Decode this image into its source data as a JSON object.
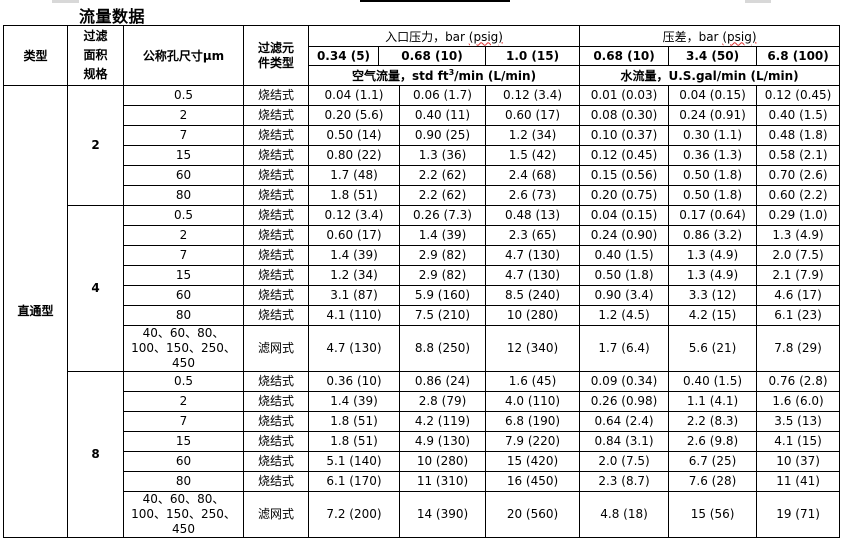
{
  "title": "流量数据",
  "header": {
    "type": "类型",
    "filter_area": "过滤面积规格",
    "pore_size": "公称孔尺寸μm",
    "element_type": "过滤元件类型",
    "inlet_pressure": {
      "label": "入口压力，bar",
      "unit": "(psig)"
    },
    "pressure_diff": {
      "label": "压差，bar",
      "unit": "(psig)"
    },
    "air_pressures": [
      "0.34 (5)",
      "0.68 (10)",
      "1.0 (15)"
    ],
    "water_pressures": [
      "0.68 (10)",
      "3.4 (50)",
      "6.8 (100)"
    ],
    "air_flow": {
      "pre": "空气流量，std ft",
      "sup": "3",
      "post": "/min (L/min)"
    },
    "water_flow": "水流量，U.S.gal/min  (L/min)"
  },
  "type_value": "直通型",
  "groups": [
    {
      "size": "2",
      "rows": [
        {
          "pore": "0.5",
          "element": "烧结式",
          "air": [
            "0.04 (1.1)",
            "0.06 (1.7)",
            "0.12 (3.4)"
          ],
          "water": [
            "0.01 (0.03)",
            "0.04 (0.15)",
            "0.12 (0.45)"
          ]
        },
        {
          "pore": "2",
          "element": "烧结式",
          "air": [
            "0.20 (5.6)",
            "0.40 (11)",
            "0.60 (17)"
          ],
          "water": [
            "0.08 (0.30)",
            "0.24 (0.91)",
            "0.40 (1.5)"
          ]
        },
        {
          "pore": "7",
          "element": "烧结式",
          "air": [
            "0.50 (14)",
            "0.90 (25)",
            "1.2 (34)"
          ],
          "water": [
            "0.10 (0.37)",
            "0.30 (1.1)",
            "0.48 (1.8)"
          ]
        },
        {
          "pore": "15",
          "element": "烧结式",
          "air": [
            "0.80 (22)",
            "1.3 (36)",
            "1.5 (42)"
          ],
          "water": [
            "0.12 (0.45)",
            "0.36 (1.3)",
            "0.58 (2.1)"
          ]
        },
        {
          "pore": "60",
          "element": "烧结式",
          "air": [
            "1.7 (48)",
            "2.2 (62)",
            "2.4 (68)"
          ],
          "water": [
            "0.15 (0.56)",
            "0.50 (1.8)",
            "0.70 (2.6)"
          ]
        },
        {
          "pore": "80",
          "element": "烧结式",
          "air": [
            "1.8 (51)",
            "2.2 (62)",
            "2.6 (73)"
          ],
          "water": [
            "0.20 (0.75)",
            "0.50 (1.8)",
            "0.60 (2.2)"
          ]
        }
      ]
    },
    {
      "size": "4",
      "rows": [
        {
          "pore": "0.5",
          "element": "烧结式",
          "air": [
            "0.12 (3.4)",
            "0.26 (7.3)",
            "0.48 (13)"
          ],
          "water": [
            "0.04 (0.15)",
            "0.17 (0.64)",
            "0.29 (1.0)"
          ]
        },
        {
          "pore": "2",
          "element": "烧结式",
          "air": [
            "0.60 (17)",
            "1.4 (39)",
            "2.3  (65)"
          ],
          "water": [
            "0.24 (0.90)",
            "0.86 (3.2)",
            "1.3 (4.9)"
          ]
        },
        {
          "pore": "7",
          "element": "烧结式",
          "air": [
            "1.4 (39)",
            "2.9 (82)",
            "4.7 (130)"
          ],
          "water": [
            "0.40 (1.5)",
            "1.3 (4.9)",
            "2.0 (7.5)"
          ]
        },
        {
          "pore": "15",
          "element": "烧结式",
          "air": [
            "1.2 (34)",
            "2.9 (82)",
            "4.7 (130)"
          ],
          "water": [
            "0.50 (1.8)",
            "1.3 (4.9)",
            "2.1 (7.9)"
          ]
        },
        {
          "pore": "60",
          "element": "烧结式",
          "air": [
            "3.1 (87)",
            "5.9 (160)",
            "8.5 (240)"
          ],
          "water": [
            "0.90 (3.4)",
            "3.3 (12)",
            "4.6 (17)"
          ]
        },
        {
          "pore": "80",
          "element": "烧结式",
          "air": [
            "4.1 (110)",
            "7.5 (210)",
            "10 (280)"
          ],
          "water": [
            "1.2 (4.5)",
            "4.2 (15)",
            "6.1 (23)"
          ]
        },
        {
          "pore": "40、60、80、100、150、250、450",
          "element": "滤网式",
          "air": [
            "4.7 (130)",
            "8.8 (250)",
            "12 (340)"
          ],
          "water": [
            "1.7 (6.4)",
            "5.6 (21)",
            "7.8 (29)"
          ]
        }
      ]
    },
    {
      "size": "8",
      "rows": [
        {
          "pore": "0.5",
          "element": "烧结式",
          "air": [
            "0.36 (10)",
            "0.86 (24)",
            "1.6 (45)"
          ],
          "water": [
            "0.09 (0.34)",
            "0.40 (1.5)",
            "0.76 (2.8)"
          ]
        },
        {
          "pore": "2",
          "element": "烧结式",
          "air": [
            "1.4 (39)",
            "2.8 (79)",
            "4.0 (110)"
          ],
          "water": [
            "0.26 (0.98)",
            "1.1 (4.1)",
            "1.6 (6.0)"
          ]
        },
        {
          "pore": "7",
          "element": "烧结式",
          "air": [
            "1.8 (51)",
            "4.2 (119)",
            "6.8 (190)"
          ],
          "water": [
            "0.64 (2.4)",
            "2.2 (8.3)",
            "3.5 (13)"
          ]
        },
        {
          "pore": "15",
          "element": "烧结式",
          "air": [
            "1.8 (51)",
            "4.9 (130)",
            "7.9 (220)"
          ],
          "water": [
            "0.84 (3.1)",
            "2.6 (9.8)",
            "4.1 (15)"
          ]
        },
        {
          "pore": "60",
          "element": "烧结式",
          "air": [
            "5.1 (140)",
            "10 (280)",
            "15 (420)"
          ],
          "water": [
            "2.0 (7.5)",
            "6.7 (25)",
            "10 (37)"
          ]
        },
        {
          "pore": "80",
          "element": "烧结式",
          "air": [
            "6.1 (170)",
            "11 (310)",
            "16 (450)"
          ],
          "water": [
            "2.3 (8.7)",
            "7.6 (28)",
            "11 (41)"
          ]
        },
        {
          "pore": "40、60、80、100、150、250、450",
          "element": "滤网式",
          "air": [
            "7.2 (200)",
            "14 (390)",
            "20 (560)"
          ],
          "water": [
            "4.8 (18)",
            "15 (56)",
            "19 (71)"
          ]
        }
      ]
    }
  ]
}
